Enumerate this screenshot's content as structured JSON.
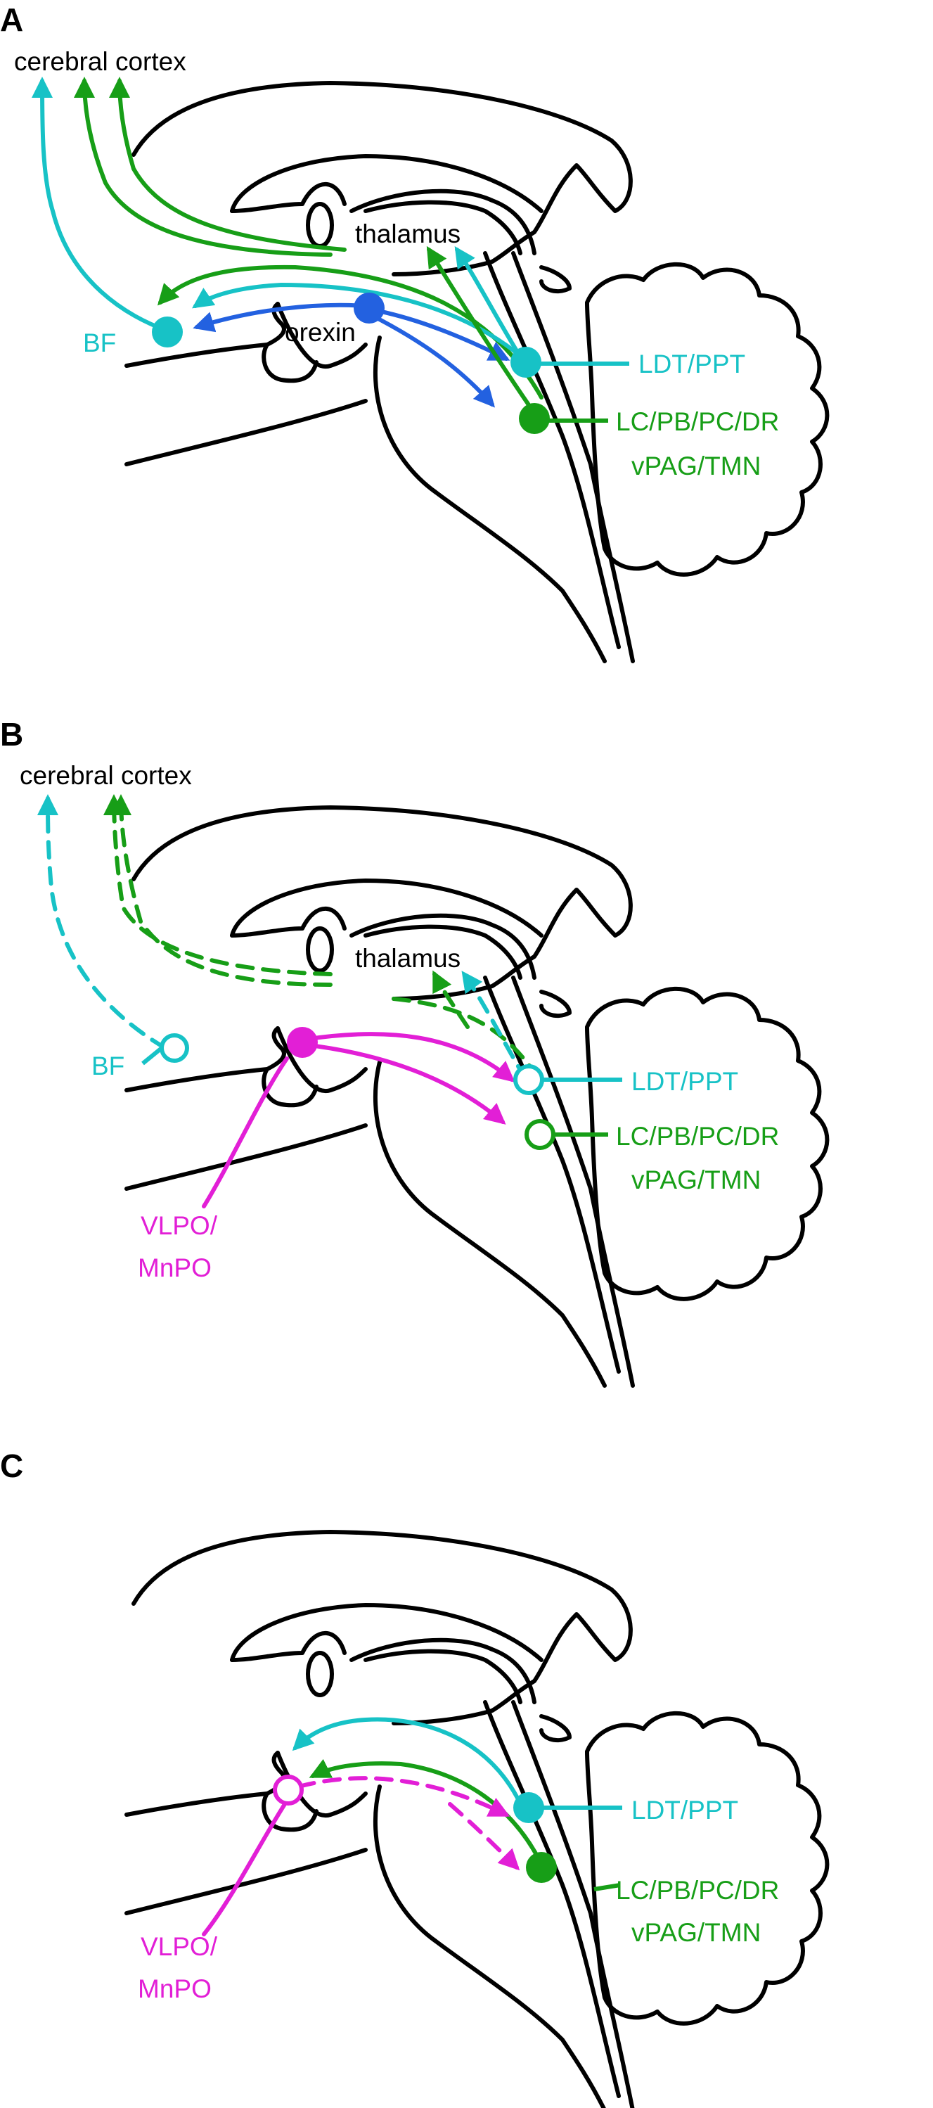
{
  "colors": {
    "cyan": "#17c2c6",
    "green": "#179e17",
    "blue": "#2361e0",
    "magenta": "#e21fd6",
    "outline": "#000000"
  },
  "panelA": {
    "panel_label": "A",
    "cortex": "cerebral cortex",
    "thalamus": "thalamus",
    "bf": "BF",
    "orexin": "orexin",
    "ldt": "LDT/PPT",
    "lc_line1": "LC/PB/PC/DR",
    "lc_line2": "vPAG/TMN"
  },
  "panelB": {
    "panel_label": "B",
    "cortex": "cerebral cortex",
    "thalamus": "thalamus",
    "bf": "BF",
    "ldt": "LDT/PPT",
    "lc_line1": "LC/PB/PC/DR",
    "lc_line2": "vPAG/TMN",
    "vlpo_line1": "VLPO/",
    "vlpo_line2": "MnPO"
  },
  "panelC": {
    "panel_label": "C",
    "ldt": "LDT/PPT",
    "lc_line1": "LC/PB/PC/DR",
    "lc_line2": "vPAG/TMN",
    "vlpo_line1": "VLPO/",
    "vlpo_line2": "MnPO"
  }
}
